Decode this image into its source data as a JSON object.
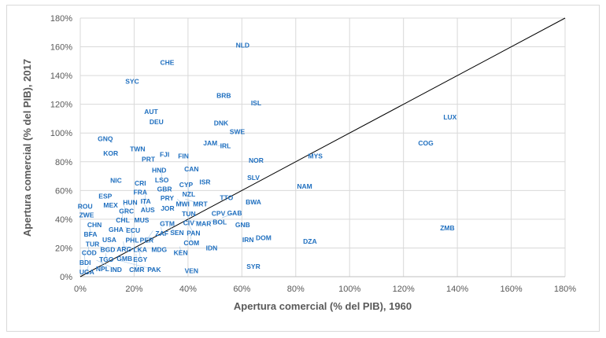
{
  "chart_data": {
    "type": "scatter",
    "xlabel": "Apertura comercial (% del PIB), 1960",
    "ylabel": "Apertura comercial (% del PIB), 2017",
    "xlim": [
      0,
      180
    ],
    "ylim": [
      0,
      180
    ],
    "xticks": [
      "0%",
      "20%",
      "40%",
      "60%",
      "80%",
      "100%",
      "120%",
      "140%",
      "160%",
      "180%"
    ],
    "yticks": [
      "0%",
      "20%",
      "40%",
      "60%",
      "80%",
      "100%",
      "120%",
      "140%",
      "160%",
      "180%"
    ],
    "grid": true,
    "reference_line": "45-degree line (y = x)",
    "label_color": "#1f6fbf",
    "points": [
      {
        "label": "NLD",
        "x": 60,
        "y": 161
      },
      {
        "label": "CHE",
        "x": 32,
        "y": 149
      },
      {
        "label": "SYC",
        "x": 19,
        "y": 136
      },
      {
        "label": "BRB",
        "x": 53,
        "y": 126
      },
      {
        "label": "ISL",
        "x": 65,
        "y": 121
      },
      {
        "label": "AUT",
        "x": 26,
        "y": 115
      },
      {
        "label": "DEU",
        "x": 28,
        "y": 109
      },
      {
        "label": "DNK",
        "x": 52,
        "y": 107
      },
      {
        "label": "SWE",
        "x": 58,
        "y": 101
      },
      {
        "label": "LUX",
        "x": 137,
        "y": 111
      },
      {
        "label": "GNQ",
        "x": 9,
        "y": 96
      },
      {
        "label": "JAM",
        "x": 48,
        "y": 93
      },
      {
        "label": "IRL",
        "x": 51,
        "y": 91
      },
      {
        "label": "COG",
        "x": 128,
        "y": 93
      },
      {
        "label": "TWN",
        "x": 21,
        "y": 89
      },
      {
        "label": "KOR",
        "x": 11,
        "y": 86
      },
      {
        "label": "FJI",
        "x": 31,
        "y": 85
      },
      {
        "label": "PRT",
        "x": 25,
        "y": 83
      },
      {
        "label": "FIN",
        "x": 38,
        "y": 84
      },
      {
        "label": "NOR",
        "x": 65,
        "y": 81
      },
      {
        "label": "MYS",
        "x": 87,
        "y": 84
      },
      {
        "label": "HND",
        "x": 29,
        "y": 74
      },
      {
        "label": "LSO",
        "x": 30,
        "y": 75
      },
      {
        "label": "CAN",
        "x": 41,
        "y": 75
      },
      {
        "label": "NIC",
        "x": 13,
        "y": 67
      },
      {
        "label": "SLV",
        "x": 64,
        "y": 69
      },
      {
        "label": "CRI",
        "x": 22,
        "y": 65
      },
      {
        "label": "CYP",
        "x": 39,
        "y": 64
      },
      {
        "label": "NZL",
        "x": 40,
        "y": 63
      },
      {
        "label": "ISR",
        "x": 46,
        "y": 66
      },
      {
        "label": "NAM",
        "x": 83,
        "y": 63
      },
      {
        "label": "FRA",
        "x": 22,
        "y": 60
      },
      {
        "label": "ITA",
        "x": 24,
        "y": 58
      },
      {
        "label": "GBR",
        "x": 31,
        "y": 61
      },
      {
        "label": "PRY",
        "x": 32,
        "y": 58
      },
      {
        "label": "ESP",
        "x": 9,
        "y": 56
      },
      {
        "label": "MEX",
        "x": 11,
        "y": 52
      },
      {
        "label": "HUN",
        "x": 20,
        "y": 54
      },
      {
        "label": "AUS",
        "x": 23,
        "y": 53
      },
      {
        "label": "MWI",
        "x": 36,
        "y": 54
      },
      {
        "label": "MRT",
        "x": 39,
        "y": 54
      },
      {
        "label": "JOR",
        "x": 33,
        "y": 51
      },
      {
        "label": "GRC",
        "x": 16,
        "y": 50
      },
      {
        "label": "TTO",
        "x": 54,
        "y": 55
      },
      {
        "label": "BWA",
        "x": 64,
        "y": 52
      },
      {
        "label": "ROU",
        "x": 1.5,
        "y": 49
      },
      {
        "label": "ZWE",
        "x": 0.3,
        "y": 44
      },
      {
        "label": "CHL",
        "x": 15.5,
        "y": 45
      },
      {
        "label": "MUS",
        "x": 22.5,
        "y": 40.5
      },
      {
        "label": "TUN",
        "x": 40,
        "y": 45
      },
      {
        "label": "CIV",
        "x": 40,
        "y": 43
      },
      {
        "label": "CPV",
        "x": 51,
        "y": 44
      },
      {
        "label": "MAR",
        "x": 42,
        "y": 39
      },
      {
        "label": "BOL",
        "x": 48,
        "y": 39
      },
      {
        "label": "GAB",
        "x": 52.6,
        "y": 41
      },
      {
        "label": "CHN",
        "x": 5,
        "y": 36
      },
      {
        "label": "BFA",
        "x": 3.5,
        "y": 34
      },
      {
        "label": "GHA",
        "x": 13,
        "y": 36
      },
      {
        "label": "ECU",
        "x": 16.7,
        "y": 34.5
      },
      {
        "label": "PHL",
        "x": 19,
        "y": 32
      },
      {
        "label": "GTM",
        "x": 32,
        "y": 37
      },
      {
        "label": "ZAF",
        "x": 30,
        "y": 34.5
      },
      {
        "label": "SEN",
        "x": 33,
        "y": 35
      },
      {
        "label": "PER",
        "x": 27,
        "y": 32
      },
      {
        "label": "PAN",
        "x": 40,
        "y": 37
      },
      {
        "label": "GNB",
        "x": 60,
        "y": 36
      },
      {
        "label": "USA",
        "x": 10.5,
        "y": 29
      },
      {
        "label": "TUR",
        "x": 6,
        "y": 25
      },
      {
        "label": "ARG",
        "x": 16,
        "y": 24.6
      },
      {
        "label": "LKA",
        "x": 16.7,
        "y": 21
      },
      {
        "label": "COM",
        "x": 41,
        "y": 29
      },
      {
        "label": "IRN",
        "x": 62,
        "y": 25.7
      },
      {
        "label": "DOM",
        "x": 66,
        "y": 27
      },
      {
        "label": "DZA",
        "x": 85,
        "y": 24.6
      },
      {
        "label": "ZMB",
        "x": 136,
        "y": 34
      },
      {
        "label": "COD",
        "x": 3,
        "y": 21
      },
      {
        "label": "BGD",
        "x": 7.3,
        "y": 21
      },
      {
        "label": "MDG",
        "x": 29,
        "y": 21
      },
      {
        "label": "KEN",
        "x": 37,
        "y": 21
      },
      {
        "label": "IDN",
        "x": 48.5,
        "y": 20
      },
      {
        "label": "EGY",
        "x": 22,
        "y": 18.6
      },
      {
        "label": "BDI",
        "x": 1.5,
        "y": 17.5
      },
      {
        "label": "TGO",
        "x": 9.4,
        "y": 16.4
      },
      {
        "label": "GMB",
        "x": 17,
        "y": 16
      },
      {
        "label": "CMR",
        "x": 20.7,
        "y": 16
      },
      {
        "label": "NPL",
        "x": 8,
        "y": 13
      },
      {
        "label": "IND",
        "x": 6,
        "y": 11.5
      },
      {
        "label": "PAK",
        "x": 14,
        "y": 11.5
      },
      {
        "label": "UGA",
        "x": 3,
        "y": 7.7
      },
      {
        "label": "SYR",
        "x": 64,
        "y": 7
      },
      {
        "label": "VEN",
        "x": 41,
        "y": 2
      }
    ]
  }
}
